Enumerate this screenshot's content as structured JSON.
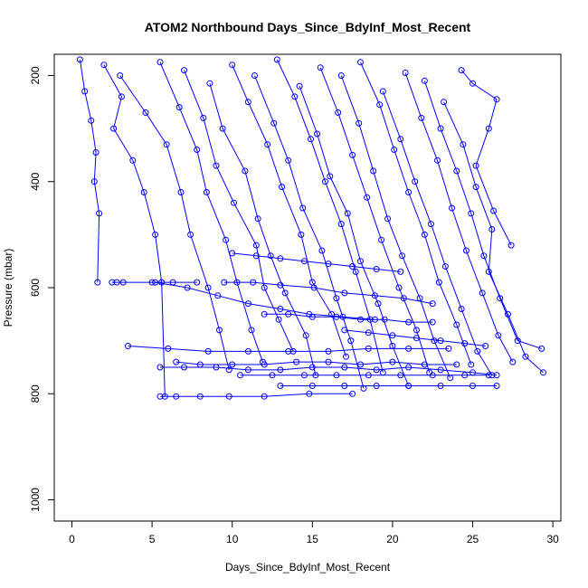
{
  "chart_data": {
    "type": "scatter",
    "title": "ATOM2 Northbound Days_Since_BdyInf_Most_Recent",
    "xlabel": "Days_Since_BdyInf_Most_Recent",
    "ylabel": "Pressure (mbar)",
    "xlim": [
      -1.1,
      30.5
    ],
    "ylim": [
      1040,
      160
    ],
    "y_reversed": true,
    "x_ticks": [
      0,
      5,
      10,
      15,
      20,
      25,
      30
    ],
    "x_tick_labels": [
      "0",
      "5",
      "10",
      "15",
      "20",
      "25",
      "30"
    ],
    "y_ticks": [
      200,
      400,
      600,
      800,
      1000
    ],
    "y_tick_labels": [
      "200",
      "400",
      "600",
      "800",
      "1000"
    ],
    "grid": false,
    "legend": "none",
    "marker": "open-circle",
    "connected_by_lines": true,
    "color": "#0000ff",
    "series": [
      {
        "x": [
          0.5,
          0.8,
          1.2,
          1.5,
          1.4,
          1.7,
          1.6
        ],
        "y": [
          170,
          230,
          285,
          345,
          400,
          460,
          590
        ]
      },
      {
        "x": [
          2.0,
          3.1,
          2.6,
          3.8,
          4.5,
          5.2,
          5.6,
          5.8
        ],
        "y": [
          180,
          240,
          300,
          360,
          420,
          500,
          590,
          805
        ]
      },
      {
        "x": [
          3.0,
          4.6,
          5.9,
          6.8,
          7.4,
          8.5,
          9.2,
          9.8
        ],
        "y": [
          200,
          270,
          330,
          420,
          500,
          600,
          680,
          755
        ]
      },
      {
        "x": [
          5.5,
          6.7,
          7.8,
          8.4,
          9.6,
          10.3,
          11.2,
          11.9
        ],
        "y": [
          175,
          260,
          340,
          420,
          510,
          590,
          680,
          740
        ]
      },
      {
        "x": [
          7.0,
          8.2,
          9.0,
          10.1,
          11.5,
          12.0,
          12.9,
          13.8
        ],
        "y": [
          190,
          280,
          370,
          440,
          520,
          600,
          660,
          720
        ]
      },
      {
        "x": [
          8.6,
          9.4,
          10.8,
          11.6,
          12.4,
          13.3,
          14.6,
          15.2
        ],
        "y": [
          215,
          300,
          380,
          470,
          540,
          610,
          690,
          765
        ]
      },
      {
        "x": [
          10.0,
          11.0,
          12.2,
          13.1,
          14.3,
          15.0,
          16.2,
          17.1
        ],
        "y": [
          180,
          250,
          330,
          410,
          500,
          590,
          650,
          730
        ]
      },
      {
        "x": [
          11.4,
          12.6,
          13.5,
          14.4,
          15.6,
          16.5,
          17.4,
          18.2
        ],
        "y": [
          200,
          290,
          360,
          450,
          530,
          620,
          700,
          790
        ]
      },
      {
        "x": [
          12.8,
          13.9,
          14.9,
          15.8,
          16.8,
          17.7,
          18.6,
          19.4
        ],
        "y": [
          170,
          240,
          320,
          400,
          480,
          570,
          660,
          760
        ]
      },
      {
        "x": [
          14.2,
          15.3,
          16.1,
          17.2,
          18.0,
          19.1,
          20.0,
          21.0
        ],
        "y": [
          220,
          310,
          390,
          460,
          550,
          630,
          710,
          785
        ]
      },
      {
        "x": [
          15.5,
          16.6,
          17.5,
          18.4,
          19.3,
          20.4,
          21.5,
          22.3
        ],
        "y": [
          185,
          270,
          350,
          430,
          510,
          600,
          680,
          760
        ]
      },
      {
        "x": [
          16.8,
          17.9,
          18.8,
          19.7,
          20.6,
          21.7,
          22.6,
          23.6
        ],
        "y": [
          200,
          290,
          380,
          470,
          540,
          620,
          700,
          770
        ]
      },
      {
        "x": [
          18.0,
          19.2,
          20.1,
          21.0,
          22.0,
          22.9,
          24.0,
          24.9
        ],
        "y": [
          175,
          255,
          340,
          420,
          500,
          590,
          670,
          745
        ]
      },
      {
        "x": [
          19.4,
          20.5,
          21.4,
          22.4,
          23.3,
          24.3,
          25.3,
          26.2
        ],
        "y": [
          230,
          320,
          400,
          480,
          560,
          640,
          720,
          765
        ]
      },
      {
        "x": [
          20.8,
          21.8,
          22.8,
          23.7,
          24.6,
          25.6,
          26.6,
          27.5
        ],
        "y": [
          195,
          280,
          360,
          450,
          530,
          610,
          690,
          740
        ]
      },
      {
        "x": [
          22.0,
          23.0,
          24.0,
          24.9,
          25.7,
          26.7,
          27.8,
          29.3
        ],
        "y": [
          210,
          300,
          380,
          460,
          540,
          620,
          700,
          715
        ]
      },
      {
        "x": [
          23.2,
          24.4,
          25.2,
          26.2,
          26.0,
          27.2,
          28.3,
          29.4
        ],
        "y": [
          250,
          330,
          410,
          490,
          570,
          650,
          730,
          760
        ]
      },
      {
        "x": [
          24.3,
          25.0,
          26.5,
          26.0,
          25.2,
          26.3,
          27.4
        ],
        "y": [
          190,
          215,
          245,
          300,
          370,
          455,
          520
        ]
      },
      {
        "x": [
          9.5,
          11.3,
          13.0,
          15.1,
          17.0,
          18.9,
          20.7,
          22.5
        ],
        "y": [
          590,
          590,
          595,
          600,
          610,
          615,
          620,
          630
        ]
      },
      {
        "x": [
          5.2,
          7.2,
          9.1,
          11.0,
          13.0,
          14.8,
          16.9,
          18.9
        ],
        "y": [
          590,
          600,
          615,
          630,
          640,
          650,
          655,
          660
        ]
      },
      {
        "x": [
          3.5,
          6.0,
          8.5,
          11.0,
          13.5,
          16.0,
          18.5,
          21.0,
          23.5
        ],
        "y": [
          710,
          715,
          720,
          720,
          720,
          720,
          715,
          715,
          715
        ]
      },
      {
        "x": [
          6.5,
          8.0,
          10.0,
          12.0,
          14.0,
          16.0,
          18.0,
          20.0,
          22.0,
          24.0
        ],
        "y": [
          740,
          745,
          745,
          745,
          740,
          740,
          745,
          740,
          745,
          745
        ]
      },
      {
        "x": [
          5.5,
          7.0,
          9.0,
          11.0,
          13.0,
          15.0,
          17.0,
          19.0,
          21.0,
          23.0,
          25.0,
          26.5
        ],
        "y": [
          750,
          750,
          750,
          755,
          755,
          750,
          750,
          755,
          750,
          755,
          760,
          765
        ]
      },
      {
        "x": [
          10.5,
          12.5,
          14.5,
          16.5,
          18.5,
          20.5,
          22.5,
          24.5,
          26.0
        ],
        "y": [
          765,
          765,
          765,
          765,
          765,
          765,
          765,
          765,
          765
        ]
      },
      {
        "x": [
          13.0,
          15.0,
          17.0,
          19.0,
          21.0,
          23.0,
          25.0,
          26.5
        ],
        "y": [
          785,
          785,
          785,
          785,
          785,
          785,
          785,
          785
        ]
      },
      {
        "x": [
          5.5,
          6.5,
          8.0,
          9.8,
          12.0,
          14.8,
          17.5
        ],
        "y": [
          805,
          805,
          805,
          805,
          805,
          800,
          800
        ]
      },
      {
        "x": [
          10.0,
          11.5,
          13.0,
          14.5,
          16.0,
          17.5,
          19.0,
          20.5
        ],
        "y": [
          535,
          540,
          545,
          550,
          555,
          560,
          565,
          570
        ]
      },
      {
        "x": [
          12.0,
          13.5,
          15.0,
          16.5,
          18.0,
          19.5,
          21.0,
          22.5
        ],
        "y": [
          650,
          650,
          655,
          655,
          660,
          660,
          665,
          665
        ]
      },
      {
        "x": [
          17.0,
          18.5,
          20.0,
          21.5,
          23.0,
          24.5,
          25.8
        ],
        "y": [
          680,
          685,
          690,
          695,
          700,
          705,
          710
        ]
      },
      {
        "x": [
          2.5,
          2.8,
          3.2,
          5.0,
          6.3,
          7.8
        ],
        "y": [
          590,
          590,
          590,
          590,
          590,
          590
        ]
      }
    ]
  }
}
